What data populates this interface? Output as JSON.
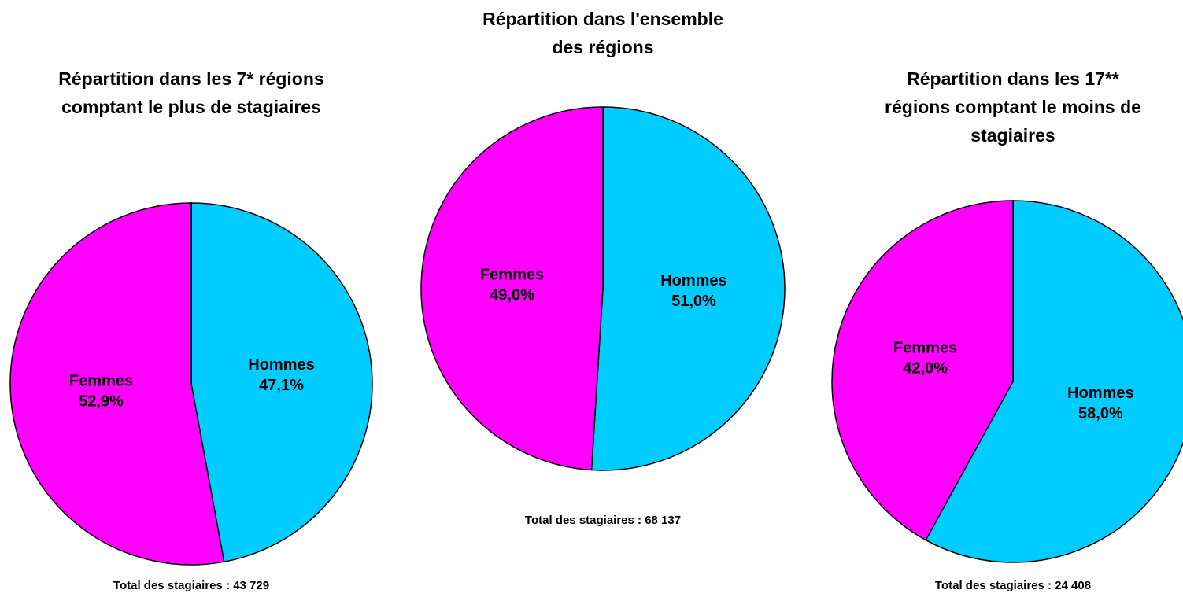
{
  "chart_data": [
    {
      "type": "pie",
      "title": "Répartition dans les 7* régions comptant le plus de stagiaires",
      "categories": [
        "Hommes",
        "Femmes"
      ],
      "values": [
        47.1,
        52.9
      ],
      "value_labels": [
        "47,1%",
        "52,9%"
      ],
      "colors": [
        "#00ccff",
        "#ff00ff"
      ],
      "note": "Total des stagiaires : 43 729"
    },
    {
      "type": "pie",
      "title": "Répartition dans l'ensemble des régions",
      "categories": [
        "Hommes",
        "Femmes"
      ],
      "values": [
        51.0,
        49.0
      ],
      "value_labels": [
        "51,0%",
        "49,0%"
      ],
      "colors": [
        "#00ccff",
        "#ff00ff"
      ],
      "note": "Total des stagiaires : 68 137"
    },
    {
      "type": "pie",
      "title": "Répartition dans les 17** régions comptant le moins de stagiaires",
      "categories": [
        "Hommes",
        "Femmes"
      ],
      "values": [
        58.0,
        42.0
      ],
      "value_labels": [
        "58,0%",
        "42,0%"
      ],
      "colors": [
        "#00ccff",
        "#ff00ff"
      ],
      "note": "Total des stagiaires : 24 408"
    }
  ]
}
